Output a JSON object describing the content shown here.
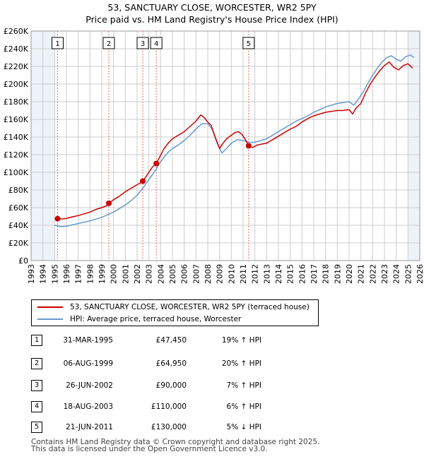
{
  "chart_data": {
    "type": "line",
    "title": "53, SANCTUARY CLOSE, WORCESTER, WR2 5PY",
    "subtitle": "Price paid vs. HM Land Registry's House Price Index (HPI)",
    "xlim": [
      1993,
      2026
    ],
    "ylim": [
      0,
      260000
    ],
    "y_ticks": [
      0,
      20000,
      40000,
      60000,
      80000,
      100000,
      120000,
      140000,
      160000,
      180000,
      200000,
      220000,
      240000,
      260000
    ],
    "y_tick_labels": [
      "£0",
      "£20K",
      "£40K",
      "£60K",
      "£80K",
      "£100K",
      "£120K",
      "£140K",
      "£160K",
      "£180K",
      "£200K",
      "£220K",
      "£240K",
      "£260K"
    ],
    "x_ticks": [
      1993,
      1994,
      1995,
      1996,
      1997,
      1998,
      1999,
      2000,
      2001,
      2002,
      2003,
      2004,
      2005,
      2006,
      2007,
      2008,
      2009,
      2010,
      2011,
      2012,
      2013,
      2014,
      2015,
      2016,
      2017,
      2018,
      2019,
      2020,
      2021,
      2022,
      2023,
      2024,
      2025,
      2026
    ],
    "x_tick_labels": [
      "1993",
      "1994",
      "1995",
      "1996",
      "1997",
      "1998",
      "1999",
      "2000",
      "2001",
      "2002",
      "2003",
      "2004",
      "2005",
      "2006",
      "2007",
      "2008",
      "2009",
      "2010",
      "2011",
      "2012",
      "2013",
      "2014",
      "2015",
      "2016",
      "2017",
      "2018",
      "2019",
      "2020",
      "2021",
      "2022",
      "2023",
      "2024",
      "2025",
      "2026"
    ],
    "grid": true,
    "series": [
      {
        "name": "53, SANCTUARY CLOSE, WORCESTER, WR2 5PY (terraced house)",
        "color": "#cc0000",
        "x": [
          1995.25,
          1995.6,
          1996.0,
          1996.5,
          1997.0,
          1997.5,
          1998.0,
          1998.5,
          1999.0,
          1999.4,
          1999.6,
          2000.0,
          2000.5,
          2001.0,
          2001.5,
          2002.0,
          2002.3,
          2002.48,
          2002.7,
          2003.0,
          2003.3,
          2003.63,
          2003.9,
          2004.3,
          2004.7,
          2005.0,
          2005.5,
          2006.0,
          2006.5,
          2007.0,
          2007.4,
          2007.7,
          2008.0,
          2008.3,
          2008.6,
          2009.0,
          2009.3,
          2009.6,
          2010.0,
          2010.3,
          2010.6,
          2010.9,
          2011.2,
          2011.47,
          2011.8,
          2012.2,
          2012.6,
          2013.0,
          2013.5,
          2014.0,
          2014.5,
          2015.0,
          2015.5,
          2016.0,
          2016.5,
          2017.0,
          2017.5,
          2018.0,
          2018.5,
          2019.0,
          2019.5,
          2020.0,
          2020.3,
          2020.6,
          2021.0,
          2021.4,
          2021.8,
          2022.2,
          2022.6,
          2023.0,
          2023.4,
          2023.8,
          2024.2,
          2024.6,
          2025.0,
          2025.4
        ],
        "values": [
          47450,
          47200,
          47700,
          49500,
          51000,
          53000,
          55000,
          58000,
          60000,
          62000,
          64950,
          69000,
          73000,
          78000,
          82000,
          86000,
          88000,
          90000,
          94000,
          100000,
          106000,
          110000,
          117000,
          127000,
          134000,
          138000,
          142000,
          146000,
          152000,
          158000,
          165000,
          162000,
          157000,
          153000,
          141000,
          127000,
          133000,
          138000,
          142000,
          145000,
          146000,
          143000,
          137000,
          130000,
          128000,
          131000,
          132000,
          133000,
          137000,
          141000,
          145000,
          149000,
          152000,
          157000,
          161000,
          164000,
          166000,
          168000,
          169000,
          170000,
          170000,
          171000,
          166000,
          173000,
          178000,
          190000,
          200000,
          208000,
          215000,
          221000,
          225000,
          219000,
          216000,
          221000,
          223000,
          218000
        ]
      },
      {
        "name": "HPI: Average price, terraced house, Worcester",
        "color": "#6699cc",
        "x": [
          1995.0,
          1995.5,
          1996.0,
          1996.5,
          1997.0,
          1997.5,
          1998.0,
          1998.5,
          1999.0,
          1999.5,
          2000.0,
          2000.5,
          2001.0,
          2001.5,
          2002.0,
          2002.5,
          2003.0,
          2003.5,
          2004.0,
          2004.5,
          2005.0,
          2005.5,
          2006.0,
          2006.5,
          2007.0,
          2007.5,
          2008.0,
          2008.4,
          2008.8,
          2009.2,
          2009.6,
          2010.0,
          2010.5,
          2011.0,
          2011.5,
          2012.0,
          2012.5,
          2013.0,
          2013.5,
          2014.0,
          2014.5,
          2015.0,
          2015.5,
          2016.0,
          2016.5,
          2017.0,
          2017.5,
          2018.0,
          2018.5,
          2019.0,
          2019.5,
          2020.0,
          2020.4,
          2020.8,
          2021.2,
          2021.6,
          2022.0,
          2022.4,
          2022.8,
          2023.2,
          2023.6,
          2024.0,
          2024.4,
          2024.8,
          2025.2,
          2025.5
        ],
        "values": [
          40000,
          38500,
          39000,
          40500,
          42000,
          43500,
          45000,
          47000,
          49000,
          52000,
          55000,
          59000,
          63000,
          68000,
          74000,
          82000,
          92000,
          101000,
          112000,
          121000,
          127000,
          131000,
          136000,
          142000,
          149000,
          155000,
          155000,
          148000,
          133000,
          122000,
          127000,
          133000,
          137000,
          136000,
          134000,
          134000,
          136000,
          138000,
          142000,
          146000,
          150000,
          154000,
          158000,
          161000,
          164000,
          168000,
          171000,
          174000,
          176000,
          178000,
          179000,
          180000,
          176000,
          183000,
          191000,
          201000,
          210000,
          218000,
          225000,
          230000,
          232000,
          228000,
          226000,
          231000,
          233000,
          230000
        ]
      }
    ],
    "sales": [
      {
        "num": "1",
        "date": "31-MAR-1995",
        "x": 1995.25,
        "price": 47450,
        "price_label": "£47,450",
        "hpi": "19% ↑ HPI"
      },
      {
        "num": "2",
        "date": "06-AUG-1999",
        "x": 1999.6,
        "price": 64950,
        "price_label": "£64,950",
        "hpi": "20% ↑ HPI"
      },
      {
        "num": "3",
        "date": "26-JUN-2002",
        "x": 2002.48,
        "price": 90000,
        "price_label": "£90,000",
        "hpi": "7% ↑ HPI"
      },
      {
        "num": "4",
        "date": "18-AUG-2003",
        "x": 2003.63,
        "price": 110000,
        "price_label": "£110,000",
        "hpi": "6% ↑ HPI"
      },
      {
        "num": "5",
        "date": "21-JUN-2011",
        "x": 2011.47,
        "price": 130000,
        "price_label": "£130,000",
        "hpi": "5% ↓ HPI"
      }
    ]
  },
  "footer": {
    "line1": "Contains HM Land Registry data © Crown copyright and database right 2025.",
    "line2": "This data is licensed under the Open Government Licence v3.0."
  },
  "colors": {
    "shade": "#dde6f4",
    "marker": "#cc0000",
    "vline": "#e06666",
    "grid": "#cccccc"
  }
}
